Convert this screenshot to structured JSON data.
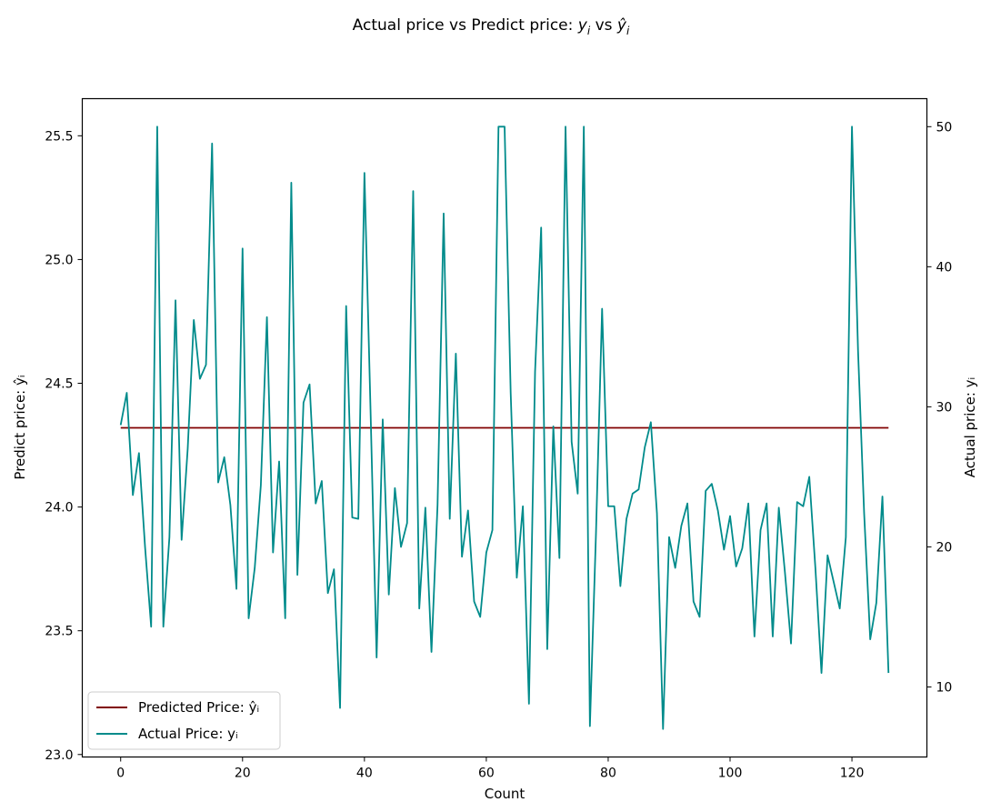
{
  "chart_data": {
    "type": "line",
    "title": "Actual price vs Predict price: yᵢ vs ŷᵢ",
    "title_parts": {
      "prefix": "Actual price vs Predict price: ",
      "y": "y",
      "vs": " vs ",
      "yhat": "ŷ",
      "sub": "i"
    },
    "xlabel": "Count",
    "ylabel_left": "Predict price: ŷᵢ",
    "ylabel_right": "Actual price: yᵢ",
    "xlim": [
      -6.3,
      132.3
    ],
    "ylim_left": [
      22.99,
      25.65
    ],
    "ylim_right": [
      5.0,
      52.0
    ],
    "x_ticks": [
      0,
      20,
      40,
      60,
      80,
      100,
      120
    ],
    "y_left_ticks": [
      "23.0",
      "23.5",
      "24.0",
      "24.5",
      "25.0",
      "25.5"
    ],
    "y_right_ticks": [
      10,
      20,
      30,
      40,
      50
    ],
    "legend_position": "lower-left",
    "series": [
      {
        "name": "Predicted Price: ŷᵢ",
        "axis": "left",
        "color": "#800000",
        "x": [
          0,
          126
        ],
        "values": [
          24.32,
          24.32
        ]
      },
      {
        "name": "Actual Price: yᵢ",
        "axis": "right",
        "color": "#008B8B",
        "x": [
          0,
          1,
          2,
          3,
          4,
          5,
          6,
          7,
          8,
          9,
          10,
          11,
          12,
          13,
          14,
          15,
          16,
          17,
          18,
          19,
          20,
          21,
          22,
          23,
          24,
          25,
          26,
          27,
          28,
          29,
          30,
          31,
          32,
          33,
          34,
          35,
          36,
          37,
          38,
          39,
          40,
          41,
          42,
          43,
          44,
          45,
          46,
          47,
          48,
          49,
          50,
          51,
          52,
          53,
          54,
          55,
          56,
          57,
          58,
          59,
          60,
          61,
          62,
          63,
          64,
          65,
          66,
          67,
          68,
          69,
          70,
          71,
          72,
          73,
          74,
          75,
          76,
          77,
          78,
          79,
          80,
          81,
          82,
          83,
          84,
          85,
          86,
          87,
          88,
          89,
          90,
          91,
          92,
          93,
          94,
          95,
          96,
          97,
          98,
          99,
          100,
          101,
          102,
          103,
          104,
          105,
          106,
          107,
          108,
          109,
          110,
          111,
          112,
          113,
          114,
          115,
          116,
          117,
          118,
          119,
          120,
          121,
          122,
          123,
          124,
          125,
          126
        ],
        "values": [
          28.7,
          31.0,
          23.7,
          26.7,
          20.0,
          14.3,
          50.0,
          14.3,
          20.7,
          37.6,
          20.5,
          27.0,
          36.2,
          32.0,
          33.0,
          48.8,
          24.6,
          26.4,
          23.0,
          17.0,
          41.3,
          14.9,
          18.5,
          24.4,
          36.4,
          19.6,
          26.1,
          14.9,
          46.0,
          18.0,
          30.3,
          31.6,
          23.1,
          24.7,
          16.7,
          18.4,
          8.5,
          37.2,
          22.1,
          22.0,
          46.7,
          29.8,
          12.1,
          29.1,
          16.6,
          24.2,
          20.0,
          21.7,
          45.4,
          15.6,
          22.8,
          12.5,
          23.0,
          43.8,
          22.0,
          33.8,
          19.3,
          22.6,
          16.1,
          15.0,
          19.6,
          21.2,
          50.0,
          50.0,
          31.0,
          17.8,
          22.9,
          8.8,
          32.5,
          42.8,
          12.7,
          28.6,
          19.2,
          50.0,
          27.5,
          23.8,
          50.0,
          7.2,
          21.0,
          37.0,
          22.9,
          22.9,
          17.2,
          22.0,
          23.8,
          24.1,
          27.1,
          28.9,
          22.4,
          7.0,
          20.7,
          18.5,
          21.5,
          23.1,
          16.1,
          15.0,
          24.0,
          24.5,
          22.6,
          19.8,
          22.2,
          18.6,
          19.9,
          23.1,
          13.6,
          21.2,
          23.1,
          13.6,
          22.8,
          18.2,
          13.1,
          23.2,
          22.9,
          25.0,
          18.5,
          11.0,
          19.4,
          17.5,
          15.6,
          20.7,
          50.0,
          34.0,
          22.4,
          13.4,
          16.0,
          23.6,
          11.0
        ]
      }
    ]
  }
}
